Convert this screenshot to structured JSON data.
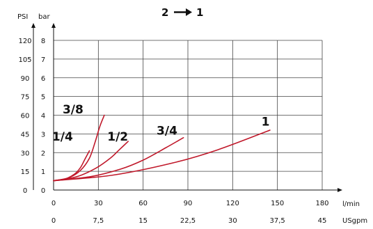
{
  "title": {
    "from": "2",
    "to": "1"
  },
  "colors": {
    "series": "#c0182a",
    "grid": "#444444",
    "axis": "#111111"
  },
  "chart_data": {
    "type": "line",
    "x_axis_primary": {
      "unit": "l/min",
      "range": [
        0,
        180
      ],
      "ticks": [
        "0",
        "30",
        "60",
        "90",
        "120",
        "150",
        "180"
      ]
    },
    "x_axis_secondary": {
      "unit": "USgpm",
      "range": [
        0,
        45
      ],
      "ticks": [
        "0",
        "7,5",
        "15",
        "22,5",
        "30",
        "37,5",
        "45"
      ]
    },
    "y_axis_primary": {
      "unit": "bar",
      "range": [
        0,
        8
      ],
      "ticks": [
        "0",
        "1",
        "2",
        "3",
        "4",
        "5",
        "6",
        "7",
        "8"
      ]
    },
    "y_axis_secondary": {
      "unit": "PSI",
      "range": [
        0,
        120
      ],
      "ticks": [
        "0",
        "15",
        "30",
        "45",
        "60",
        "75",
        "90",
        "105",
        "120"
      ]
    },
    "grid": true,
    "series": [
      {
        "name": "1/4",
        "points": [
          [
            0,
            0.5
          ],
          [
            8,
            0.6
          ],
          [
            14,
            0.85
          ],
          [
            18,
            1.2
          ],
          [
            21,
            1.65
          ],
          [
            24,
            2.1
          ]
        ],
        "label_at": [
          6,
          2.65
        ]
      },
      {
        "name": "3/8",
        "points": [
          [
            0,
            0.5
          ],
          [
            10,
            0.65
          ],
          [
            18,
            1.05
          ],
          [
            24,
            1.7
          ],
          [
            28,
            2.6
          ],
          [
            31,
            3.4
          ],
          [
            34,
            4.0
          ]
        ],
        "label_at": [
          13,
          4.1
        ]
      },
      {
        "name": "1/2",
        "points": [
          [
            0,
            0.5
          ],
          [
            15,
            0.7
          ],
          [
            28,
            1.15
          ],
          [
            38,
            1.7
          ],
          [
            44,
            2.15
          ],
          [
            50,
            2.6
          ]
        ],
        "label_at": [
          43,
          2.65
        ]
      },
      {
        "name": "3/4",
        "points": [
          [
            0,
            0.5
          ],
          [
            25,
            0.72
          ],
          [
            45,
            1.12
          ],
          [
            60,
            1.6
          ],
          [
            75,
            2.25
          ],
          [
            87,
            2.8
          ]
        ],
        "label_at": [
          76,
          2.95
        ]
      },
      {
        "name": "1",
        "points": [
          [
            0,
            0.5
          ],
          [
            40,
            0.8
          ],
          [
            80,
            1.45
          ],
          [
            110,
            2.15
          ],
          [
            145,
            3.2
          ]
        ],
        "label_at": [
          142,
          3.45
        ]
      }
    ]
  }
}
